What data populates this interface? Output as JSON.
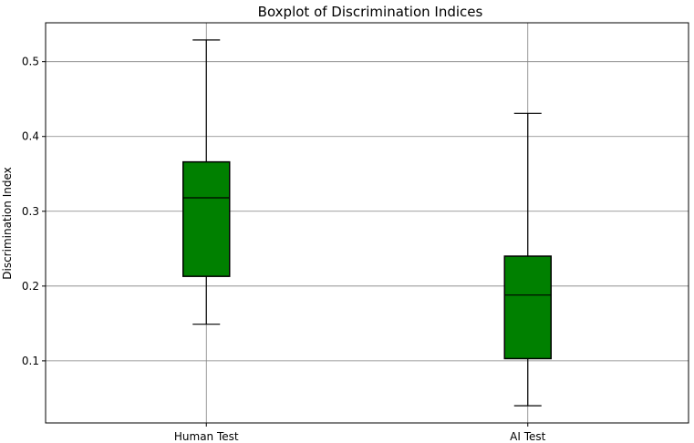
{
  "chart_data": {
    "type": "boxplot",
    "title": "Boxplot of Discrimination Indices",
    "xlabel": "",
    "ylabel": "Discrimination Index",
    "ylim": [
      0.017,
      0.552
    ],
    "yticks": [
      0.1,
      0.2,
      0.3,
      0.4,
      0.5
    ],
    "ytick_labels": [
      "0.1",
      "0.2",
      "0.3",
      "0.4",
      "0.5"
    ],
    "categories": [
      "Human Test",
      "AI Test"
    ],
    "boxes": [
      {
        "category": "Human Test",
        "whisker_low": 0.149,
        "q1": 0.213,
        "median": 0.318,
        "q3": 0.366,
        "whisker_high": 0.529
      },
      {
        "category": "AI Test",
        "whisker_low": 0.04,
        "q1": 0.103,
        "median": 0.188,
        "q3": 0.24,
        "whisker_high": 0.431
      }
    ],
    "grid": true,
    "box_fill": "#008000",
    "box_edge": "#000000",
    "whisker_color": "#000000",
    "grid_color": "#808080"
  }
}
